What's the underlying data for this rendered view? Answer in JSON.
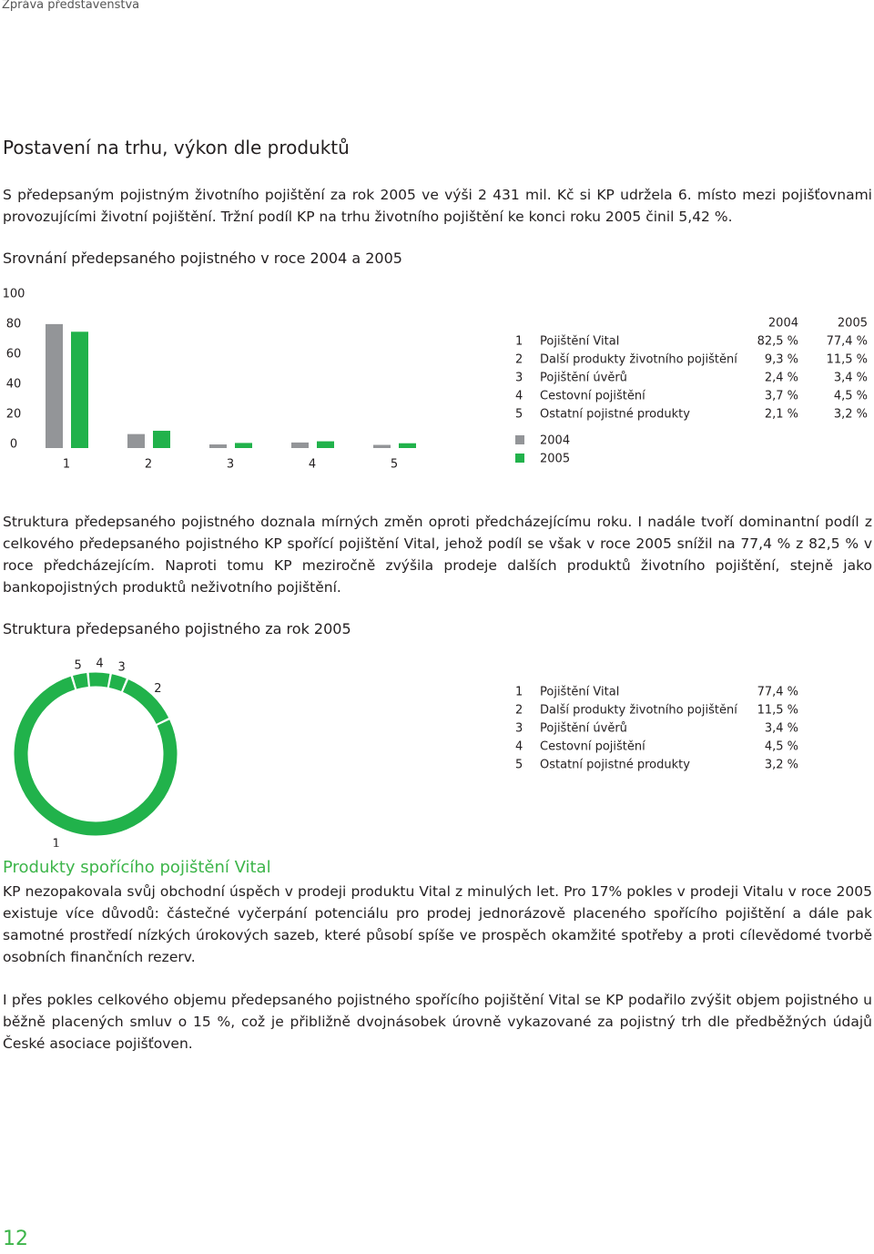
{
  "header": "Zpráva představenstva",
  "heading": "Postavení na trhu, výkon dle produktů",
  "paragraph_1": "S předepsaným pojistným životního pojištění za rok 2005 ve výši 2 431 mil. Kč si KP udržela 6. místo mezi pojišťovnami provozujícími životní pojištění. Tržní podíl KP na trhu životního pojištění ke konci roku 2005 činil 5,42 %.",
  "chart_data": [
    {
      "type": "bar",
      "title": "Srovnání předepsaného pojistného v roce 2004 a 2005",
      "categories": [
        "1",
        "2",
        "3",
        "4",
        "5"
      ],
      "category_names": [
        "Pojištění Vital",
        "Další produkty životního pojištění",
        "Pojištění úvěrů",
        "Cestovní pojištění",
        "Ostatní pojistné produkty"
      ],
      "series": [
        {
          "name": "2004",
          "color": "#939598",
          "values": [
            82.5,
            9.3,
            2.4,
            3.7,
            2.1
          ],
          "value_labels": [
            "82,5 %",
            "9,3 %",
            "2,4 %",
            "3,7 %",
            "2,1 %"
          ]
        },
        {
          "name": "2005",
          "color": "#21b24b",
          "values": [
            77.4,
            11.5,
            3.4,
            4.5,
            3.2
          ],
          "value_labels": [
            "77,4 %",
            "11,5 %",
            "3,4 %",
            "4,5 %",
            "3,2 %"
          ]
        }
      ],
      "ylim": [
        0,
        100
      ],
      "yticks": [
        0,
        20,
        40,
        60,
        80,
        100
      ]
    },
    {
      "type": "pie",
      "title": "Struktura předepsaného pojistného za rok 2005",
      "categories": [
        "1",
        "2",
        "3",
        "4",
        "5"
      ],
      "category_names": [
        "Pojištění Vital",
        "Další produkty životního pojištění",
        "Pojištění úvěrů",
        "Cestovní pojištění",
        "Ostatní pojistné produkty"
      ],
      "values": [
        77.4,
        11.5,
        3.4,
        4.5,
        3.2
      ],
      "value_labels": [
        "77,4 %",
        "11,5 %",
        "3,4 %",
        "4,5 %",
        "3,2 %"
      ],
      "color": "#21b24b"
    }
  ],
  "paragraph_2": "Struktura předepsaného pojistného doznala mírných změn oproti předcházejícímu roku. I nadále tvoří dominantní podíl z celkového předepsaného pojistného KP spořící pojištění Vital, jehož podíl se však v roce 2005 snížil na 77,4 % z 82,5 % v roce předcházejícím. Naproti tomu KP meziročně zvýšila prodeje dalších produktů životního pojištění, stejně jako bankopojistných produktů neživotního pojištění.",
  "section_heading": "Produkty spořícího pojištění Vital",
  "paragraph_3": "KP nezopakovala svůj obchodní úspěch v prodeji produktu Vital z minulých let. Pro 17% pokles v prodeji Vitalu v roce 2005 existuje více důvodů: částečné vyčerpání potenciálu pro prodej jednorázově placeného spořícího pojištění a dále pak samotné prostředí nízkých úrokových sazeb, které působí spíše ve prospěch okamžité spotřeby a proti cílevědomé tvorbě osobních finančních rezerv.",
  "paragraph_4": "I přes pokles celkového objemu předepsaného pojistného spořícího pojištění Vital se KP podařilo zvýšit objem pojistného u běžně placených smluv o 15 %, což je přibližně dvojnásobek úrovně vykazované za pojistný trh dle předběžných údajů České asociace pojišťoven.",
  "page_number": "12"
}
